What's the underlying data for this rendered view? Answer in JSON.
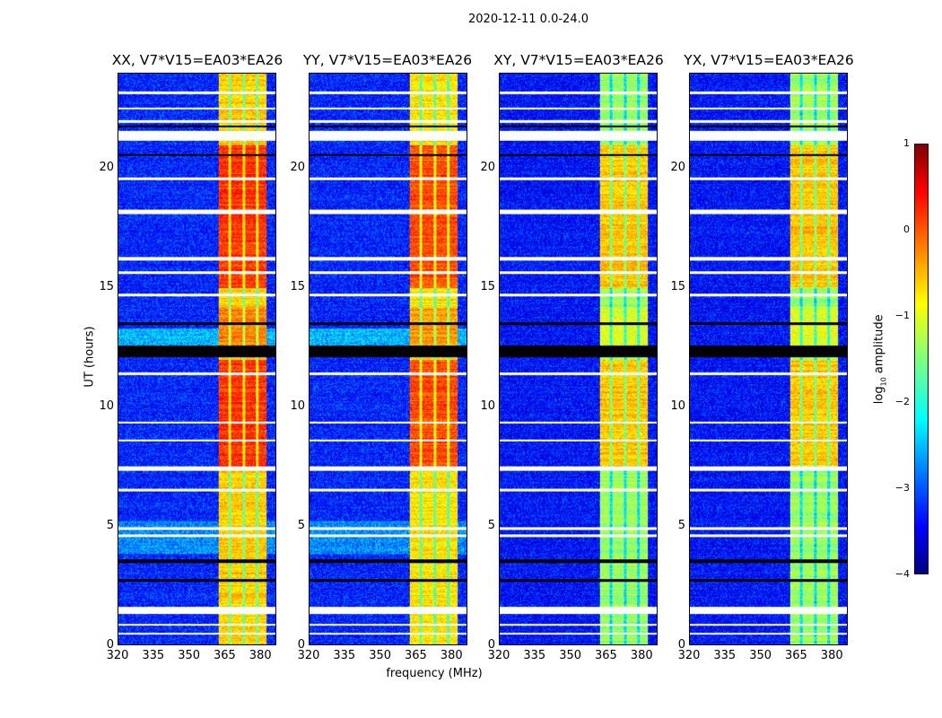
{
  "suptitle": "2020-12-11 0.0-24.0",
  "chart_data": {
    "type": "heatmap",
    "title": "2020-12-11 0.0-24.0",
    "xlabel": "frequency (MHz)",
    "ylabel": "UT (hours)",
    "xlim": [
      320,
      386.7
    ],
    "ylim": [
      0,
      24
    ],
    "xticks": [
      "320",
      "335",
      "350",
      "365",
      "380"
    ],
    "xtick_values": [
      320,
      335,
      350,
      365,
      380
    ],
    "yticks": [
      "0",
      "5",
      "10",
      "15",
      "20"
    ],
    "ytick_values": [
      0,
      5,
      10,
      15,
      20
    ],
    "panels": [
      {
        "title": "XX, V7*V15=EA03*EA26",
        "band_level": -0.3,
        "background_level": -3.2
      },
      {
        "title": "YY, V7*V15=EA03*EA26",
        "band_level": -0.4,
        "background_level": -3.2
      },
      {
        "title": "XY, V7*V15=EA03*EA26",
        "band_level": -1.0,
        "background_level": -3.3
      },
      {
        "title": "YX, V7*V15=EA03*EA26",
        "band_level": -1.0,
        "background_level": -3.3
      }
    ],
    "rfi_band_mhz": [
      362.3,
      382.6
    ],
    "rfi_subband_gaps_mhz": [
      367.2,
      373.0,
      378.8
    ],
    "flagged_rows_hours": [
      [
        0.42,
        0.5
      ],
      [
        0.8,
        0.88
      ],
      [
        1.3,
        1.6
      ],
      [
        4.55,
        4.65
      ],
      [
        4.85,
        4.95
      ],
      [
        6.45,
        6.55
      ],
      [
        7.3,
        7.5
      ],
      [
        8.55,
        8.65
      ],
      [
        9.3,
        9.4
      ],
      [
        11.35,
        11.45
      ],
      [
        14.65,
        14.75
      ],
      [
        15.6,
        15.7
      ],
      [
        16.15,
        16.3
      ],
      [
        18.1,
        18.3
      ],
      [
        19.55,
        19.65
      ],
      [
        21.2,
        21.6
      ],
      [
        21.95,
        22.05
      ],
      [
        22.5,
        22.6
      ],
      [
        23.15,
        23.25
      ]
    ],
    "dead_rows_hours": [
      [
        2.65,
        2.75
      ],
      [
        3.45,
        3.6
      ],
      [
        12.1,
        12.6
      ],
      [
        13.45,
        13.55
      ],
      [
        20.55,
        20.65
      ],
      [
        21.75,
        21.85
      ]
    ],
    "colorbar": {
      "label": "log10 amplitude",
      "label_base": "log",
      "label_sub": "10",
      "label_rest": " amplitude",
      "range": [
        -4,
        1
      ],
      "ticks": [
        "1",
        "0",
        "−1",
        "−2",
        "−3",
        "−4"
      ],
      "colormap": "jet"
    }
  }
}
